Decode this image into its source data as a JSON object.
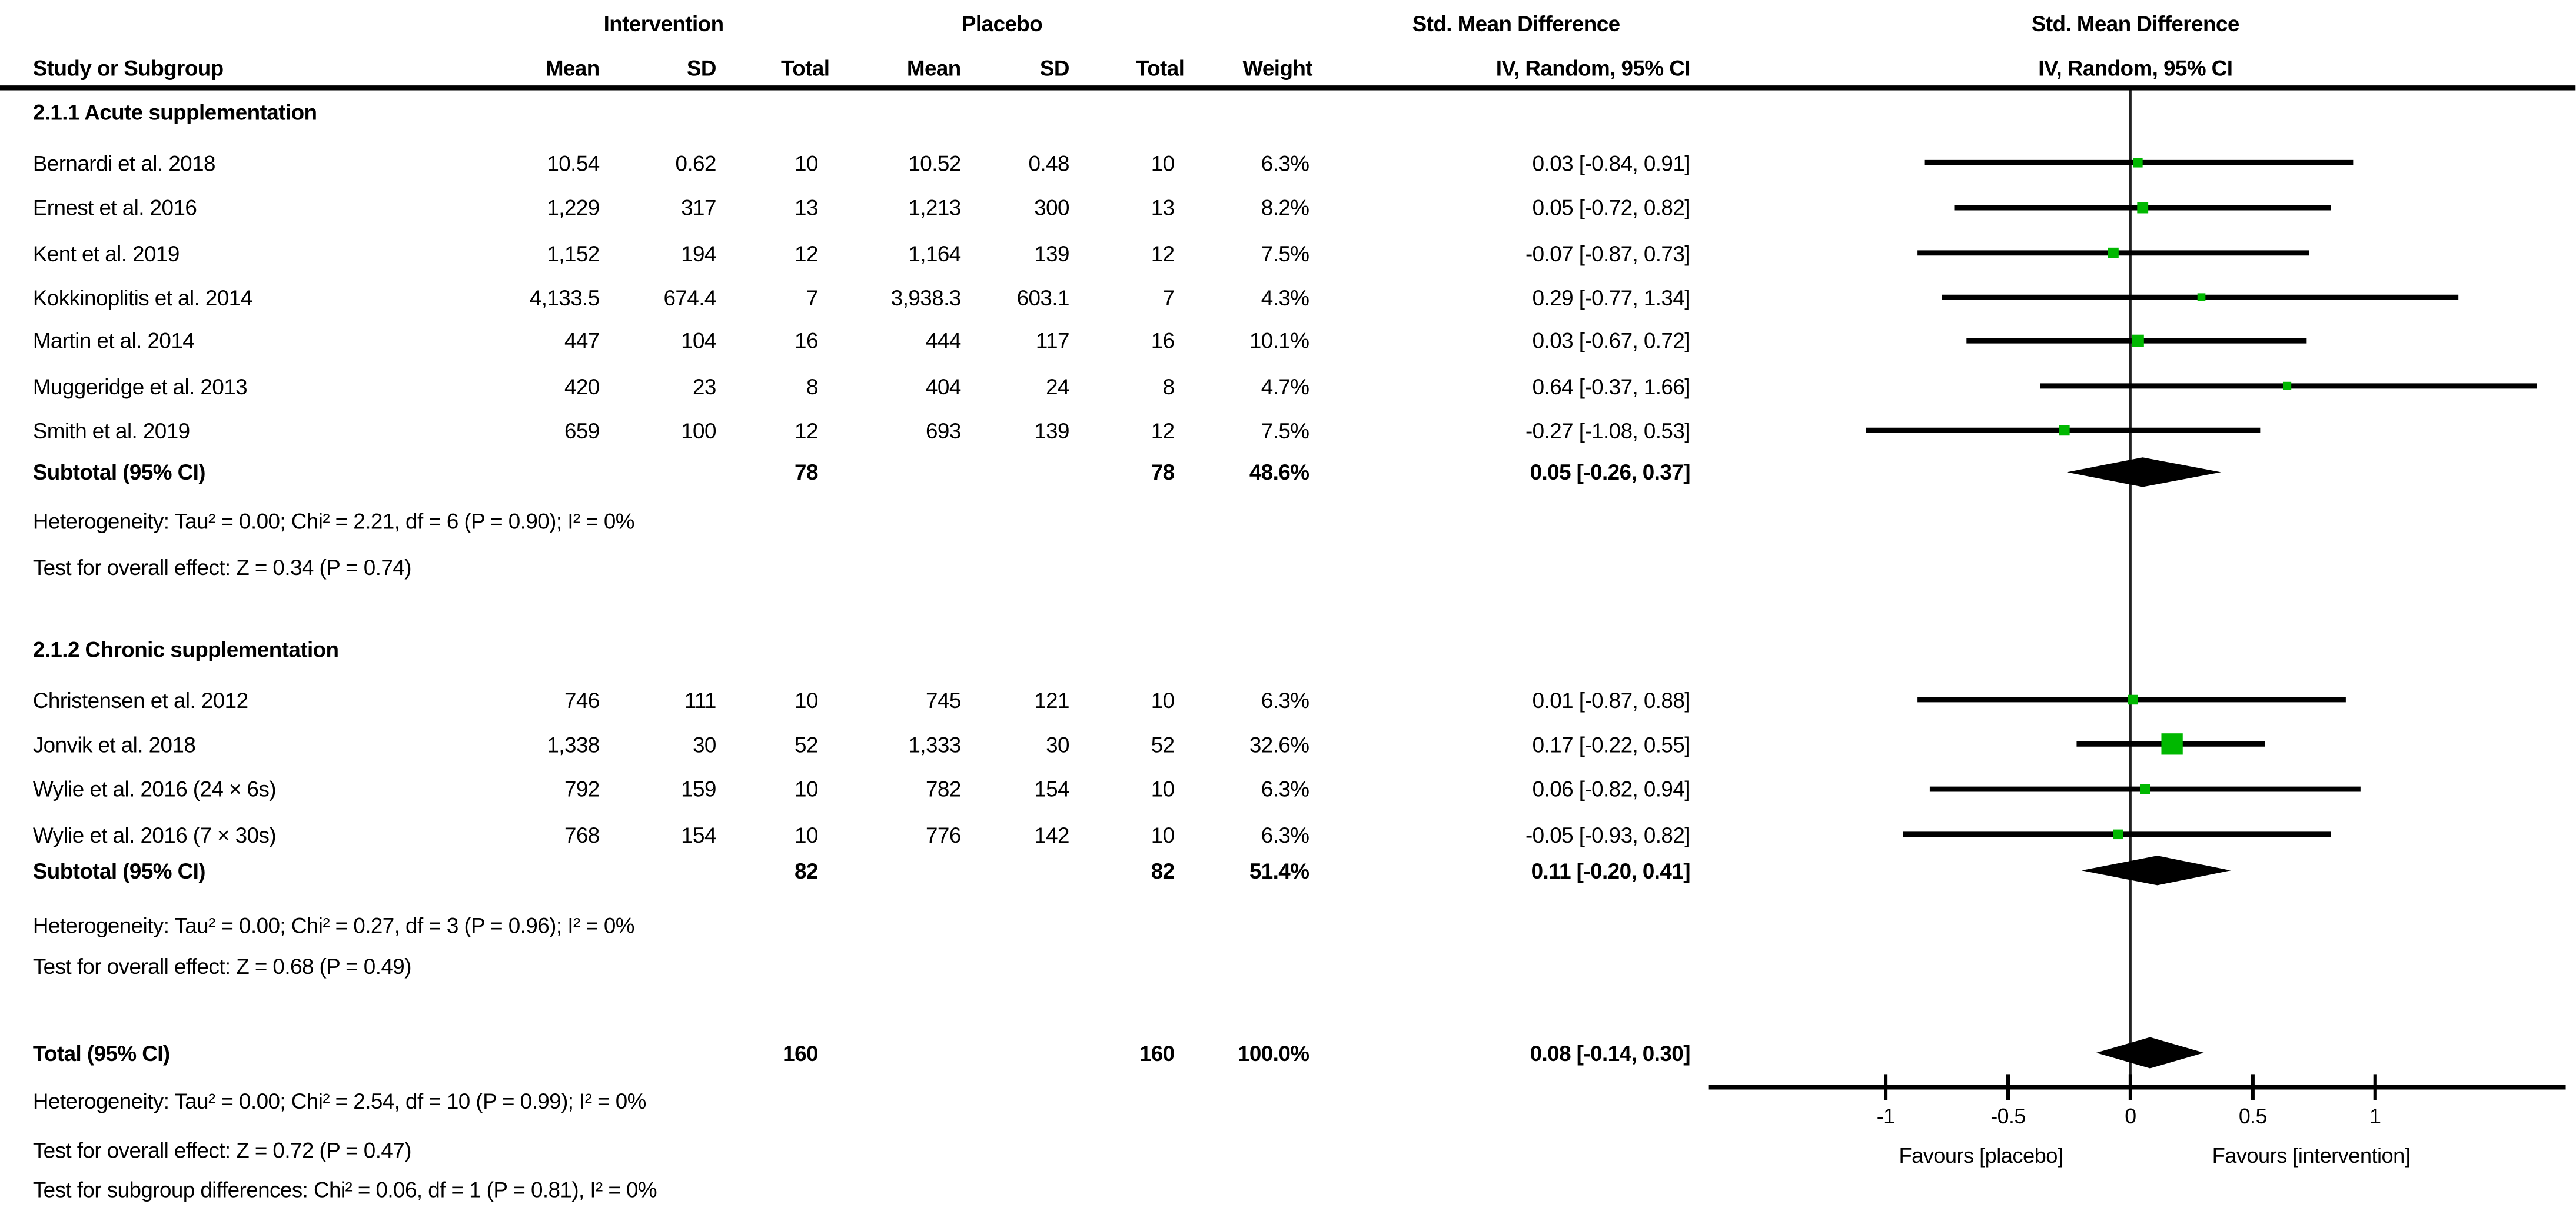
{
  "header": {
    "group_intervention": "Intervention",
    "group_placebo": "Placebo",
    "smd_table": "Std. Mean Difference",
    "smd_plot": "Std. Mean Difference",
    "study": "Study or Subgroup",
    "mean_i": "Mean",
    "sd_i": "SD",
    "total_i": "Total",
    "mean_p": "Mean",
    "sd_p": "SD",
    "total_p": "Total",
    "weight": "Weight",
    "iv_table": "IV, Random, 95% CI",
    "iv_plot": "IV, Random, 95% CI"
  },
  "colors": {
    "marker_green": "#00B800",
    "line_black": "#000000",
    "text": "#000000"
  },
  "chart_data": {
    "type": "forest",
    "x_axis": {
      "ticks": [
        -1,
        -0.5,
        0,
        0.5,
        1
      ],
      "tick_labels": [
        "-1",
        "-0.5",
        "0",
        "0.5",
        "1"
      ],
      "favours_left": "Favours [placebo]",
      "favours_right": "Favours [intervention]",
      "xlim": [
        -1.75,
        1.78
      ]
    },
    "groups": [
      {
        "title": "2.1.1 Acute supplementation",
        "studies": [
          {
            "name": "Bernardi et al. 2018",
            "i_mean": "10.54",
            "i_sd": "0.62",
            "i_total": "10",
            "p_mean": "10.52",
            "p_sd": "0.48",
            "p_total": "10",
            "weight": "6.3%",
            "weight_val": 6.3,
            "ci_text": "0.03 [-0.84, 0.91]",
            "est": 0.03,
            "lo": -0.84,
            "hi": 0.91
          },
          {
            "name": "Ernest et al. 2016",
            "i_mean": "1,229",
            "i_sd": "317",
            "i_total": "13",
            "p_mean": "1,213",
            "p_sd": "300",
            "p_total": "13",
            "weight": "8.2%",
            "weight_val": 8.2,
            "ci_text": "0.05 [-0.72, 0.82]",
            "est": 0.05,
            "lo": -0.72,
            "hi": 0.82
          },
          {
            "name": "Kent et al. 2019",
            "i_mean": "1,152",
            "i_sd": "194",
            "i_total": "12",
            "p_mean": "1,164",
            "p_sd": "139",
            "p_total": "12",
            "weight": "7.5%",
            "weight_val": 7.5,
            "ci_text": "-0.07 [-0.87, 0.73]",
            "est": -0.07,
            "lo": -0.87,
            "hi": 0.73
          },
          {
            "name": "Kokkinoplitis et al. 2014",
            "i_mean": "4,133.5",
            "i_sd": "674.4",
            "i_total": "7",
            "p_mean": "3,938.3",
            "p_sd": "603.1",
            "p_total": "7",
            "weight": "4.3%",
            "weight_val": 4.3,
            "ci_text": "0.29 [-0.77, 1.34]",
            "est": 0.29,
            "lo": -0.77,
            "hi": 1.34
          },
          {
            "name": "Martin et al. 2014",
            "i_mean": "447",
            "i_sd": "104",
            "i_total": "16",
            "p_mean": "444",
            "p_sd": "117",
            "p_total": "16",
            "weight": "10.1%",
            "weight_val": 10.1,
            "ci_text": "0.03 [-0.67, 0.72]",
            "est": 0.03,
            "lo": -0.67,
            "hi": 0.72
          },
          {
            "name": "Muggeridge et al. 2013",
            "i_mean": "420",
            "i_sd": "23",
            "i_total": "8",
            "p_mean": "404",
            "p_sd": "24",
            "p_total": "8",
            "weight": "4.7%",
            "weight_val": 4.7,
            "ci_text": "0.64 [-0.37, 1.66]",
            "est": 0.64,
            "lo": -0.37,
            "hi": 1.66
          },
          {
            "name": "Smith et al. 2019",
            "i_mean": "659",
            "i_sd": "100",
            "i_total": "12",
            "p_mean": "693",
            "p_sd": "139",
            "p_total": "12",
            "weight": "7.5%",
            "weight_val": 7.5,
            "ci_text": "-0.27 [-1.08, 0.53]",
            "est": -0.27,
            "lo": -1.08,
            "hi": 0.53
          }
        ],
        "subtotal": {
          "label": "Subtotal (95% CI)",
          "i_total": "78",
          "p_total": "78",
          "weight": "48.6%",
          "ci_text": "0.05 [-0.26, 0.37]",
          "est": 0.05,
          "lo": -0.26,
          "hi": 0.37
        },
        "heterogeneity": "Heterogeneity: Tau² = 0.00; Chi² = 2.21, df = 6 (P = 0.90); I² = 0%",
        "overall_effect": "Test for overall effect: Z = 0.34 (P = 0.74)"
      },
      {
        "title": "2.1.2 Chronic supplementation",
        "studies": [
          {
            "name": "Christensen et al. 2012",
            "i_mean": "746",
            "i_sd": "111",
            "i_total": "10",
            "p_mean": "745",
            "p_sd": "121",
            "p_total": "10",
            "weight": "6.3%",
            "weight_val": 6.3,
            "ci_text": "0.01 [-0.87, 0.88]",
            "est": 0.01,
            "lo": -0.87,
            "hi": 0.88
          },
          {
            "name": "Jonvik et al. 2018",
            "i_mean": "1,338",
            "i_sd": "30",
            "i_total": "52",
            "p_mean": "1,333",
            "p_sd": "30",
            "p_total": "52",
            "weight": "32.6%",
            "weight_val": 32.6,
            "ci_text": "0.17 [-0.22, 0.55]",
            "est": 0.17,
            "lo": -0.22,
            "hi": 0.55
          },
          {
            "name": "Wylie et al. 2016 (24 × 6s)",
            "i_mean": "792",
            "i_sd": "159",
            "i_total": "10",
            "p_mean": "782",
            "p_sd": "154",
            "p_total": "10",
            "weight": "6.3%",
            "weight_val": 6.3,
            "ci_text": "0.06 [-0.82, 0.94]",
            "est": 0.06,
            "lo": -0.82,
            "hi": 0.94
          },
          {
            "name": "Wylie et al. 2016 (7 × 30s)",
            "i_mean": "768",
            "i_sd": "154",
            "i_total": "10",
            "p_mean": "776",
            "p_sd": "142",
            "p_total": "10",
            "weight": "6.3%",
            "weight_val": 6.3,
            "ci_text": "-0.05 [-0.93, 0.82]",
            "est": -0.05,
            "lo": -0.93,
            "hi": 0.82
          }
        ],
        "subtotal": {
          "label": "Subtotal (95% CI)",
          "i_total": "82",
          "p_total": "82",
          "weight": "51.4%",
          "ci_text": "0.11 [-0.20, 0.41]",
          "est": 0.11,
          "lo": -0.2,
          "hi": 0.41
        },
        "heterogeneity": "Heterogeneity: Tau² = 0.00; Chi² = 0.27, df = 3 (P = 0.96); I² = 0%",
        "overall_effect": "Test for overall effect: Z = 0.68 (P = 0.49)"
      }
    ],
    "total": {
      "label": "Total (95% CI)",
      "i_total": "160",
      "p_total": "160",
      "weight": "100.0%",
      "ci_text": "0.08 [-0.14, 0.30]",
      "est": 0.08,
      "lo": -0.14,
      "hi": 0.3,
      "heterogeneity": "Heterogeneity: Tau² = 0.00; Chi² = 2.54, df = 10 (P = 0.99); I² = 0%",
      "overall_effect": "Test for overall effect: Z = 0.72 (P = 0.47)",
      "subgroup_diff": "Test for subgroup differences: Chi² = 0.06, df = 1 (P = 0.81), I² = 0%"
    }
  }
}
